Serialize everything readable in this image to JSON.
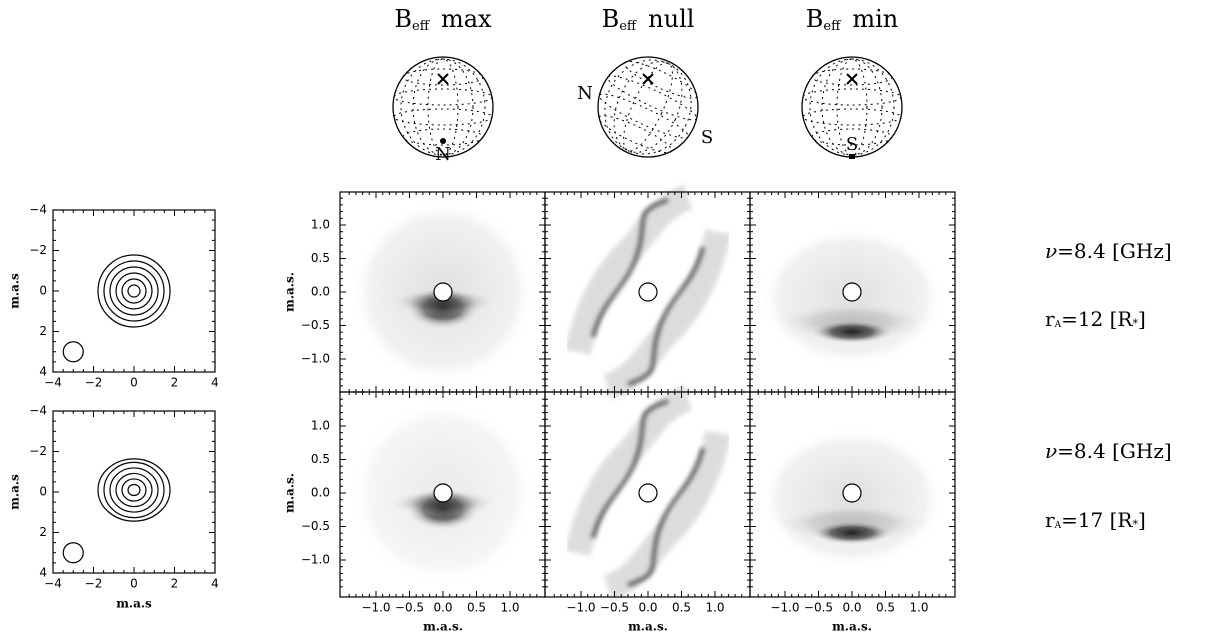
{
  "columns": [
    {
      "symbol": "B",
      "subscript": "eff",
      "label": "max",
      "north": "N"
    },
    {
      "symbol": "B",
      "subscript": "eff",
      "label": "null",
      "north": "N",
      "south": "S"
    },
    {
      "symbol": "B",
      "subscript": "eff",
      "label": "min",
      "south": "S"
    }
  ],
  "main_axes": {
    "xticks": [
      "−1.0",
      "−0.5",
      "0.0",
      "0.5",
      "1.0"
    ],
    "yticks": [
      "1.0",
      "0.5",
      "0.0",
      "−0.5",
      "−1.0"
    ],
    "xlabel": "m.a.s.",
    "ylabel": "m.a.s."
  },
  "small_axes": {
    "xticks": [
      "−4",
      "−2",
      "0",
      "2",
      "4"
    ],
    "yticks": [
      "4",
      "2",
      "0",
      "−2",
      "−4"
    ],
    "xlabel": "m.a.s",
    "ylabel": "m.a.s"
  },
  "rows": [
    {
      "frequency": {
        "symbol": "ν",
        "text": "=8.4 [GHz]"
      },
      "radius": {
        "prefix": "r",
        "subscript": "A",
        "text": "=12 [R",
        "unit_subscript": "*",
        "suffix": "]"
      }
    },
    {
      "frequency": {
        "symbol": "ν",
        "text": "=8.4 [GHz]"
      },
      "radius": {
        "prefix": "r",
        "subscript": "A",
        "text": "=17 [R",
        "unit_subscript": "*",
        "suffix": "]"
      }
    }
  ]
}
